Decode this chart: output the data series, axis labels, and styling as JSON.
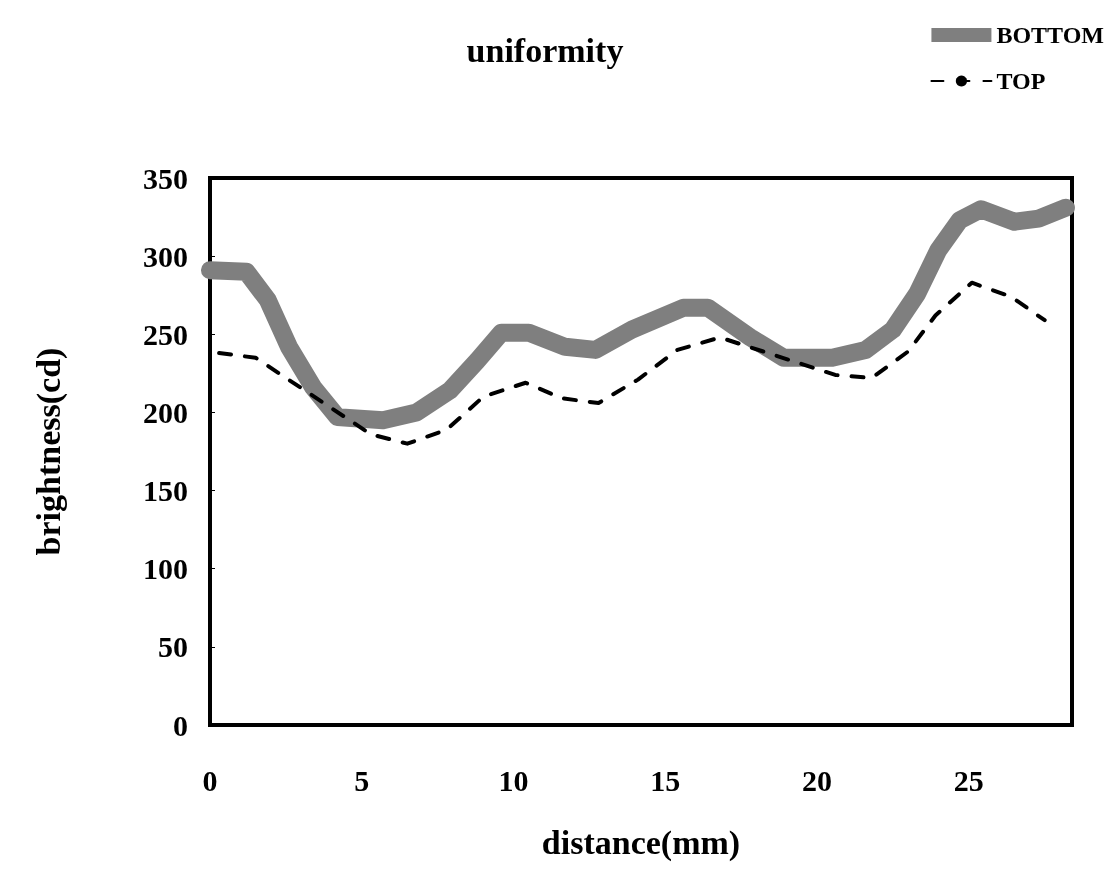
{
  "chart_data": {
    "type": "line",
    "title": "uniformity",
    "xlabel": "distance(mm)",
    "ylabel": "brightness(cd)",
    "xlim": [
      0,
      28.4
    ],
    "xticks": [
      0,
      5,
      10,
      15,
      20,
      25
    ],
    "ylim": [
      0,
      350
    ],
    "yticks": [
      0,
      50,
      100,
      150,
      200,
      250,
      300,
      350
    ],
    "grid": false,
    "legend": "top right",
    "marker": "none",
    "series": [
      {
        "name": "BOTTOM",
        "color": "#7f7f7f",
        "line_style": "solid",
        "x": [
          0,
          1.2,
          1.9,
          2.6,
          3.4,
          4.2,
          5.7,
          6.8,
          7.9,
          8.8,
          9.6,
          10.5,
          11.7,
          12.7,
          13.9,
          15.6,
          16.4,
          17.8,
          18.9,
          20.5,
          21.6,
          22.5,
          23.3,
          24.0,
          24.7,
          25.4,
          26.5,
          27.3,
          28.2
        ],
        "values": [
          291,
          290,
          272,
          242,
          216,
          197,
          195,
          200,
          214,
          233,
          251,
          251,
          242,
          240,
          253,
          267,
          267,
          248,
          235,
          235,
          240,
          253,
          276,
          304,
          323,
          330,
          322,
          324,
          331
        ]
      },
      {
        "name": "TOP",
        "color": "#000000",
        "line_style": "dashed",
        "x": [
          0.3,
          1.5,
          5.3,
          6.5,
          7.8,
          9.0,
          10.4,
          11.6,
          12.8,
          14.1,
          15.4,
          16.8,
          20.6,
          21.8,
          23.0,
          23.9,
          25.1,
          26.4,
          27.5
        ],
        "values": [
          238,
          235,
          186,
          180,
          189,
          210,
          219,
          209,
          206,
          221,
          240,
          248,
          224,
          222,
          239,
          262,
          283,
          274,
          259
        ]
      }
    ]
  }
}
